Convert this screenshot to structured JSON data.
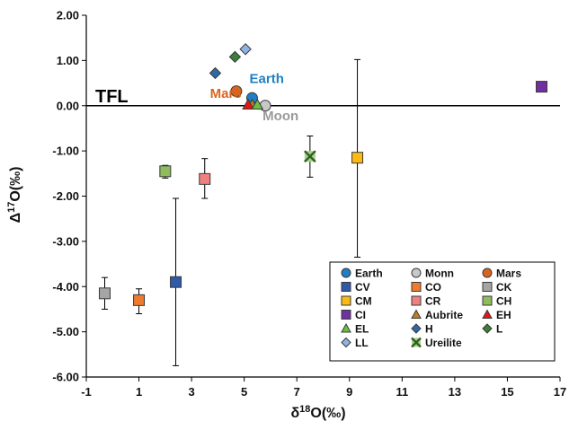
{
  "chart_data": {
    "type": "scatter",
    "xlabel_main": "δ",
    "xlabel_sup": "18",
    "xlabel_rest": "O(‰)",
    "ylabel_main": "Δ",
    "ylabel_sup": "17",
    "ylabel_rest": "O(‰)",
    "xlim": [
      -1,
      17
    ],
    "ylim": [
      -6,
      2
    ],
    "x_ticks": [
      -1,
      1,
      3,
      5,
      7,
      9,
      11,
      13,
      15,
      17
    ],
    "x_tick_labels": [
      "-1",
      "1",
      "3",
      "5",
      "7",
      "9",
      "11",
      "13",
      "15",
      "17"
    ],
    "y_ticks": [
      2,
      1,
      0,
      -1,
      -2,
      -3,
      -4,
      -5,
      -6
    ],
    "y_tick_labels": [
      "2.00",
      "1.00",
      "0.00",
      "-1.00",
      "-2.00",
      "-3.00",
      "-4.00",
      "-5.00",
      "-6.00"
    ],
    "reference_line": {
      "label": "TFL",
      "y": 0
    },
    "annotations": [
      {
        "text": "Earth",
        "x": 5.2,
        "y": 0.5,
        "color": "#1f7fc4"
      },
      {
        "text": "Mars",
        "x": 3.7,
        "y": 0.17,
        "color": "#d8651f"
      },
      {
        "text": "Moon",
        "x": 5.7,
        "y": -0.32,
        "color": "#9a9a9a"
      }
    ],
    "legend_position": "bottom-right",
    "series": [
      {
        "name": "Earth",
        "marker": "circle",
        "color": "#1f7fc4",
        "points": [
          {
            "x": 5.3,
            "y": 0.17
          }
        ]
      },
      {
        "name": "Monn",
        "marker": "circle",
        "color": "#c8c8c8",
        "points": [
          {
            "x": 5.8,
            "y": 0.0
          }
        ]
      },
      {
        "name": "Mars",
        "marker": "circle",
        "color": "#d8651f",
        "points": [
          {
            "x": 4.7,
            "y": 0.32
          }
        ]
      },
      {
        "name": "CV",
        "marker": "square",
        "color": "#2f5aa8",
        "points": [
          {
            "x": 2.4,
            "y": -3.9,
            "err_low": -5.75,
            "err_high": -2.05
          }
        ]
      },
      {
        "name": "CO",
        "marker": "square",
        "color": "#ee7b30",
        "points": [
          {
            "x": 1.0,
            "y": -4.3,
            "err_low": -4.6,
            "err_high": -4.05
          }
        ]
      },
      {
        "name": "CK",
        "marker": "square",
        "color": "#a5a5a5",
        "points": [
          {
            "x": -0.3,
            "y": -4.15,
            "err_low": -4.5,
            "err_high": -3.8
          }
        ]
      },
      {
        "name": "CM",
        "marker": "square",
        "color": "#fcb813",
        "points": [
          {
            "x": 9.3,
            "y": -1.15,
            "err_low": -3.35,
            "err_high": 1.02
          }
        ]
      },
      {
        "name": "CR",
        "marker": "square",
        "color": "#f08080",
        "points": [
          {
            "x": 3.5,
            "y": -1.62,
            "err_low": -2.05,
            "err_high": -1.17
          }
        ]
      },
      {
        "name": "CH",
        "marker": "square",
        "color": "#8fbc5f",
        "points": [
          {
            "x": 2.0,
            "y": -1.45,
            "err_low": -1.6,
            "err_high": -1.32
          }
        ]
      },
      {
        "name": "CI",
        "marker": "square",
        "color": "#7030a0",
        "points": [
          {
            "x": 16.3,
            "y": 0.42
          }
        ]
      },
      {
        "name": "Aubrite",
        "marker": "triangle",
        "color": "#bf7f1f",
        "points": [
          {
            "x": 5.3,
            "y": 0.02
          }
        ]
      },
      {
        "name": "EH",
        "marker": "triangle",
        "color": "#e81414",
        "points": [
          {
            "x": 5.15,
            "y": 0.02
          }
        ]
      },
      {
        "name": "EL",
        "marker": "triangle",
        "color": "#6cbf3f",
        "points": [
          {
            "x": 5.5,
            "y": 0.02
          }
        ]
      },
      {
        "name": "H",
        "marker": "diamond",
        "color": "#2f6aa8",
        "points": [
          {
            "x": 3.9,
            "y": 0.72
          }
        ]
      },
      {
        "name": "L",
        "marker": "diamond",
        "color": "#3a7f3a",
        "points": [
          {
            "x": 4.65,
            "y": 1.08
          }
        ]
      },
      {
        "name": "LL",
        "marker": "diamond",
        "color": "#8fb4e3",
        "points": [
          {
            "x": 5.05,
            "y": 1.25
          }
        ]
      },
      {
        "name": "Ureilite",
        "marker": "x",
        "color": "#2f5f1f",
        "fill": "#a9d18e",
        "points": [
          {
            "x": 7.5,
            "y": -1.12,
            "err_low": -1.58,
            "err_high": -0.67
          }
        ]
      }
    ]
  }
}
